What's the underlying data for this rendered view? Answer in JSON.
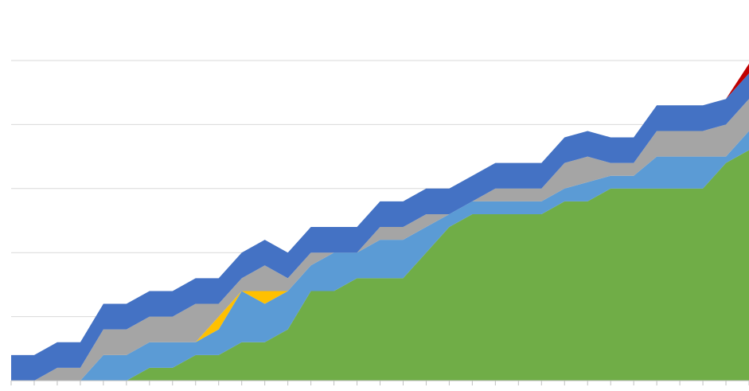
{
  "chart_data": {
    "type": "area",
    "stacked": true,
    "title": "",
    "xlabel": "",
    "ylabel": "",
    "x_count": 33,
    "ylim": [
      0,
      5
    ],
    "yticks": [
      1,
      2,
      3,
      4,
      5
    ],
    "grid": true,
    "legend": "none",
    "series": [
      {
        "color": "#70ad47",
        "values": [
          0,
          0,
          0,
          0,
          0,
          0,
          0.2,
          0.2,
          0.4,
          0.4,
          0.6,
          0.6,
          0.8,
          1.4,
          1.4,
          1.6,
          1.6,
          1.6,
          2.0,
          2.4,
          2.6,
          2.6,
          2.6,
          2.6,
          2.8,
          2.8,
          3.0,
          3.0,
          3.0,
          3.0,
          3.0,
          3.4,
          3.6
        ]
      },
      {
        "color": "#5b9bd5",
        "values": [
          0,
          0,
          0,
          0,
          0.4,
          0.4,
          0.4,
          0.4,
          0.2,
          0.4,
          0.8,
          0.6,
          0.6,
          0.4,
          0.6,
          0.4,
          0.6,
          0.6,
          0.4,
          0.2,
          0.2,
          0.2,
          0.2,
          0.2,
          0.2,
          0.3,
          0.2,
          0.2,
          0.5,
          0.5,
          0.5,
          0.1,
          0.3
        ]
      },
      {
        "color": "#ffc000",
        "values": [
          0,
          0,
          0,
          0,
          0,
          0,
          0,
          0,
          0,
          0.2,
          0,
          0.2,
          0,
          0,
          0,
          0,
          0,
          0,
          0,
          0,
          0,
          0,
          0,
          0,
          0,
          0,
          0,
          0,
          0,
          0,
          0,
          0,
          0
        ]
      },
      {
        "color": "#a5a5a5",
        "values": [
          0,
          0,
          0.2,
          0.2,
          0.4,
          0.4,
          0.4,
          0.4,
          0.6,
          0.2,
          0.2,
          0.4,
          0.2,
          0.2,
          0,
          0,
          0.2,
          0.2,
          0.2,
          0,
          0,
          0.2,
          0.2,
          0.2,
          0.4,
          0.4,
          0.2,
          0.2,
          0.4,
          0.4,
          0.4,
          0.5,
          0.5
        ]
      },
      {
        "color": "#4472c4",
        "values": [
          0.4,
          0.4,
          0.4,
          0.4,
          0.4,
          0.4,
          0.4,
          0.4,
          0.4,
          0.4,
          0.4,
          0.4,
          0.4,
          0.4,
          0.4,
          0.4,
          0.4,
          0.4,
          0.4,
          0.4,
          0.4,
          0.4,
          0.4,
          0.4,
          0.4,
          0.4,
          0.4,
          0.4,
          0.4,
          0.4,
          0.4,
          0.4,
          0.4
        ]
      },
      {
        "color": "#c00000",
        "values": [
          0,
          0,
          0,
          0,
          0,
          0,
          0,
          0,
          0,
          0,
          0,
          0,
          0,
          0,
          0,
          0,
          0,
          0,
          0,
          0,
          0,
          0,
          0,
          0,
          0,
          0,
          0,
          0,
          0,
          0,
          0,
          0,
          0.15
        ]
      }
    ]
  }
}
